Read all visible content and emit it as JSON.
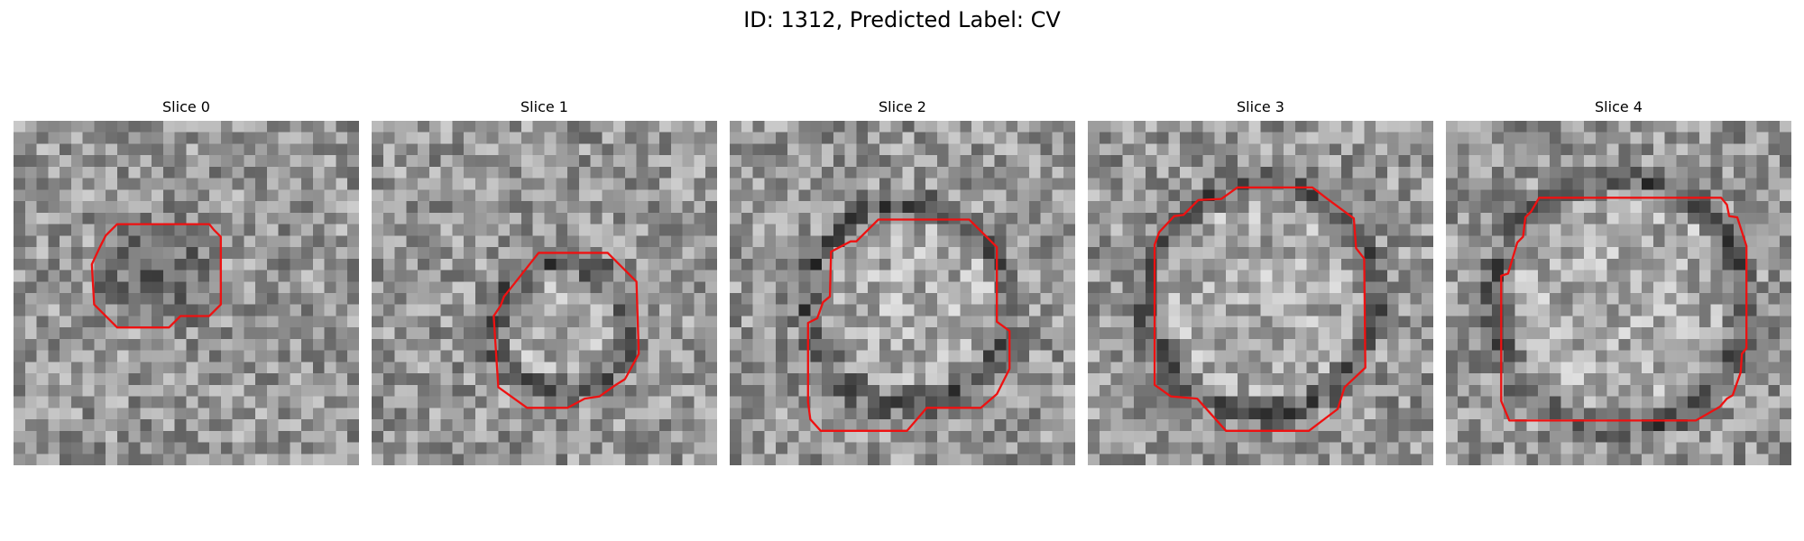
{
  "figure": {
    "title": "ID: 1312, Predicted Label: CV"
  },
  "colors": {
    "contour": "#ee1111",
    "colormap": "gray"
  },
  "panels": [
    {
      "title": "Slice 0"
    },
    {
      "title": "Slice 1"
    },
    {
      "title": "Slice 2"
    },
    {
      "title": "Slice 3"
    },
    {
      "title": "Slice 4"
    }
  ]
}
